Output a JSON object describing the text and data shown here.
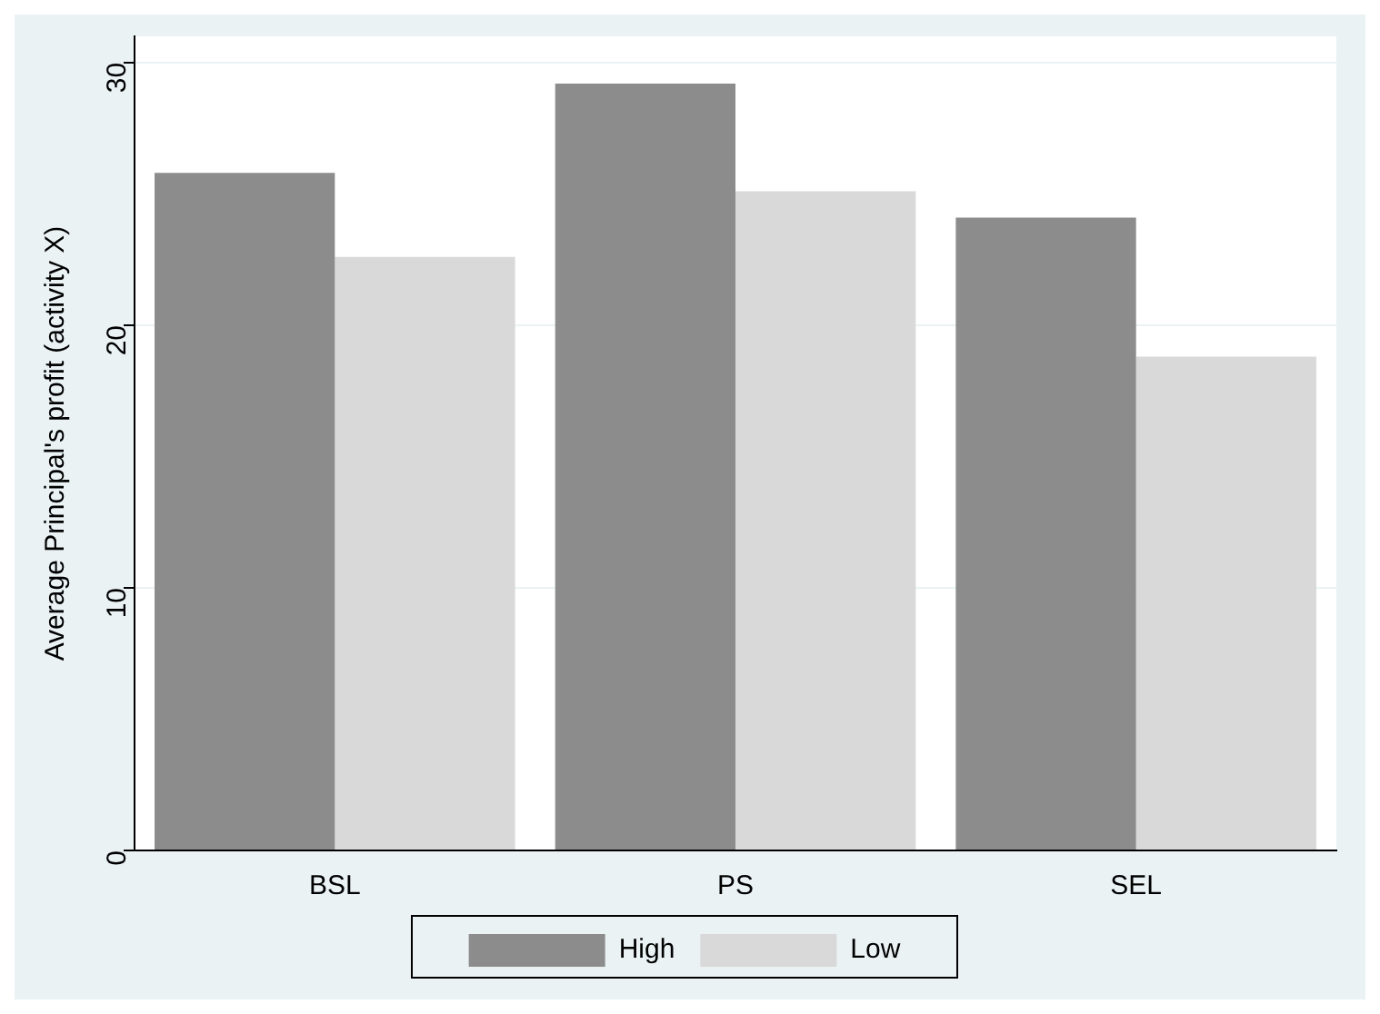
{
  "chart_data": {
    "type": "bar",
    "ylabel": "Average Principal's profit (activity X)",
    "categories": [
      "BSL",
      "PS",
      "SEL"
    ],
    "series": [
      {
        "name": "High",
        "color": "#8c8c8c",
        "values": [
          25.8,
          29.2,
          24.1
        ]
      },
      {
        "name": "Low",
        "color": "#d9d9d9",
        "values": [
          22.6,
          25.1,
          18.8
        ]
      }
    ],
    "ylim": [
      0,
      31
    ],
    "yticks": [
      0,
      10,
      20,
      30
    ],
    "grid": "y",
    "legend": "bottom"
  }
}
